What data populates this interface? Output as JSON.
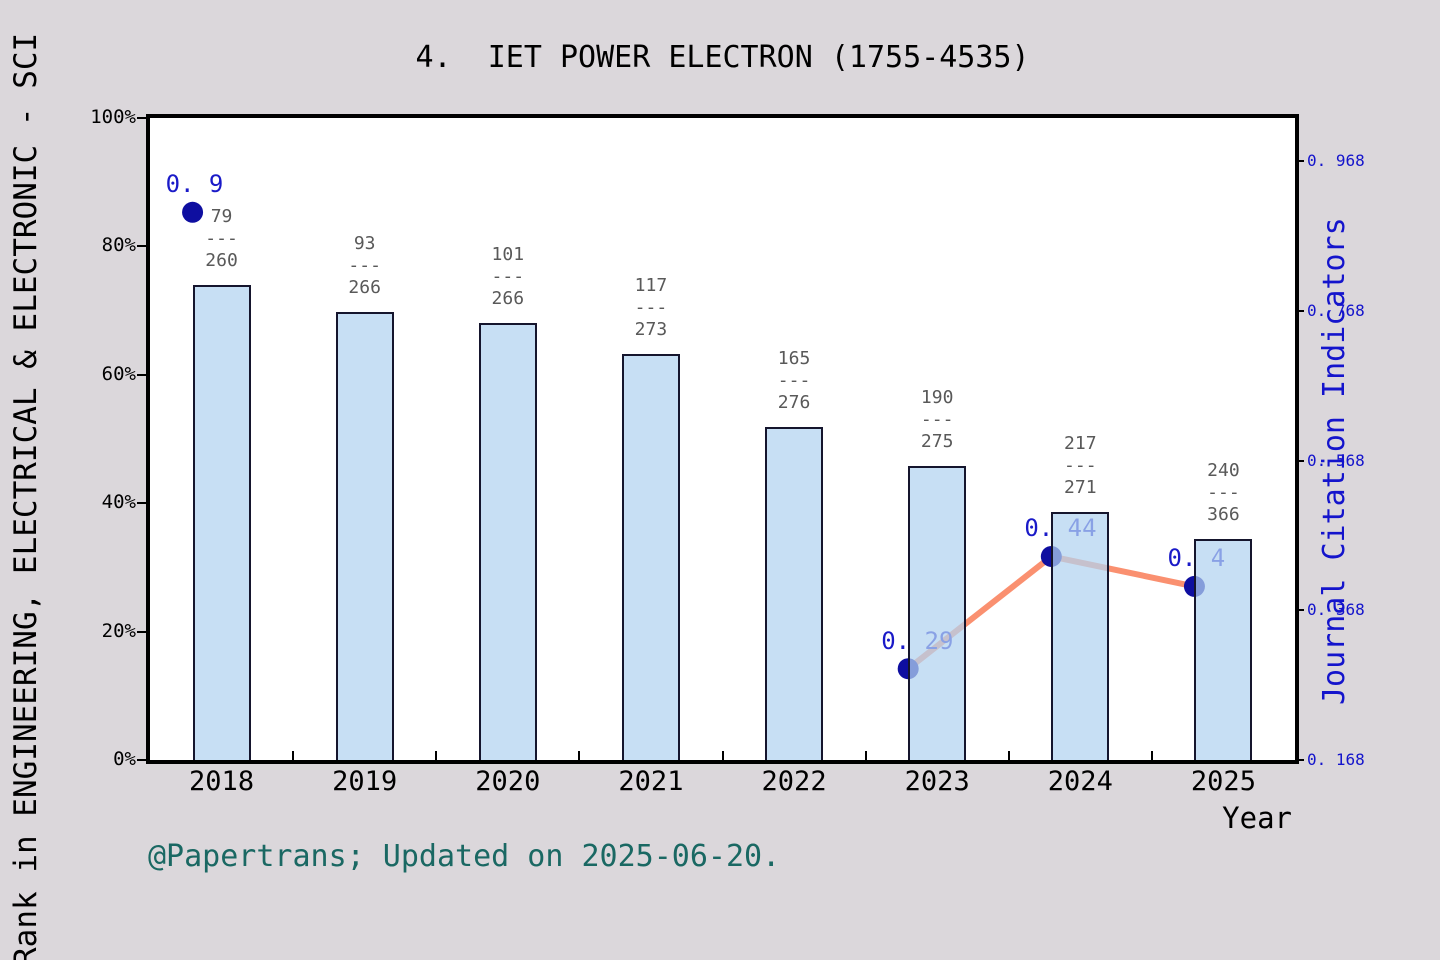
{
  "title": "4.  IET POWER ELECTRON (1755-4535)",
  "left_axis_title": "Rank in ENGINEERING, ELECTRICAL & ELECTRONIC - SCI",
  "right_axis_title": "Journal Citation Indicators",
  "caption": "@Papertrans; Updated on 2025-06-20.",
  "fraction_separator": "---",
  "chart_data": {
    "type": "bar",
    "title": "4. IET POWER ELECTRON (1755-4535)",
    "categories": [
      "2018",
      "2019",
      "2020",
      "2021",
      "2022",
      "2023",
      "2024",
      "2025"
    ],
    "x_axis": {
      "label": "Year"
    },
    "bar_series": {
      "name": "Rank in ENGINEERING, ELECTRICAL & ELECTRONIC - SCI",
      "values_pct": [
        74.0,
        69.8,
        68.1,
        63.2,
        51.9,
        45.8,
        38.6,
        34.4
      ],
      "fractions": [
        {
          "numerator": "79",
          "denominator": "260"
        },
        {
          "numerator": "93",
          "denominator": "266"
        },
        {
          "numerator": "101",
          "denominator": "266"
        },
        {
          "numerator": "117",
          "denominator": "273"
        },
        {
          "numerator": "165",
          "denominator": "276"
        },
        {
          "numerator": "190",
          "denominator": "275"
        },
        {
          "numerator": "217",
          "denominator": "271"
        },
        {
          "numerator": "240",
          "denominator": "366"
        }
      ]
    },
    "line_series": {
      "name": "Journal Citation Indicators",
      "points": [
        {
          "year": "2018",
          "value": 0.9,
          "label": "0. 9"
        },
        {
          "year": "2023",
          "value": 0.29,
          "label": "0. 29"
        },
        {
          "year": "2024",
          "value": 0.44,
          "label": "0. 44"
        },
        {
          "year": "2025",
          "value": 0.4,
          "label": "0. 4"
        }
      ],
      "connected_point_indices": [
        1,
        2,
        3
      ]
    },
    "left_axis": {
      "min": 0,
      "max": 100,
      "ticks": [
        {
          "label": "0%",
          "value": 0
        },
        {
          "label": "20%",
          "value": 20
        },
        {
          "label": "40%",
          "value": 40
        },
        {
          "label": "60%",
          "value": 60
        },
        {
          "label": "80%",
          "value": 80
        },
        {
          "label": "100%",
          "value": 100
        }
      ]
    },
    "right_axis": {
      "min": 0.168,
      "max": 1.026,
      "ticks": [
        {
          "label": "0. 168",
          "value": 0.168
        },
        {
          "label": "0. 368",
          "value": 0.368
        },
        {
          "label": "0. 568",
          "value": 0.568
        },
        {
          "label": "0. 768",
          "value": 0.768
        },
        {
          "label": "0. 968",
          "value": 0.968
        }
      ]
    },
    "legend": {
      "visible": false
    },
    "grid": false,
    "colors": {
      "background": "#DBD7DB",
      "plot_background": "#FFFFFF",
      "spine": "#000000",
      "bar_fill": "#B2D3F0",
      "bar_fill_alpha": 0.73,
      "bar_border": "#15152D",
      "line": "#FA9070",
      "marker": "#0E0EA0",
      "point_label": "#1A1AC8",
      "right_axis_text": "#1414CC",
      "fraction_text": "#595959",
      "caption_text": "#1A6863"
    }
  }
}
